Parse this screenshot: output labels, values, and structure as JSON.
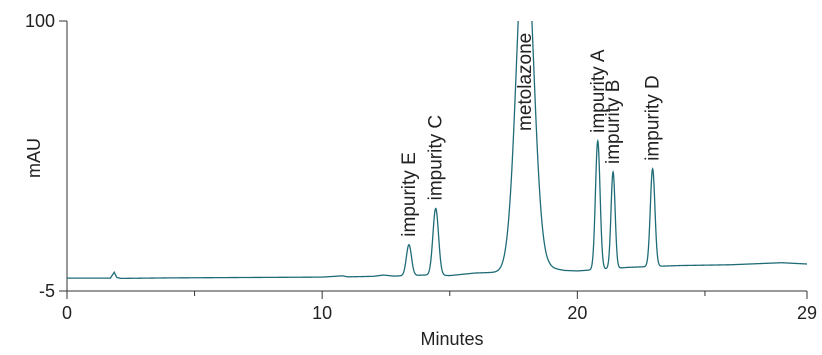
{
  "chart_data": {
    "type": "line",
    "title": "",
    "xlabel": "Minutes",
    "ylabel": "mAU",
    "xlim": [
      0,
      29
    ],
    "ylim": [
      -5,
      100
    ],
    "x_tick_labels": [
      "0",
      "10",
      "20",
      "29"
    ],
    "x_ticks": [
      0,
      10,
      20,
      29
    ],
    "x_minor_ticks": [
      5,
      15,
      25
    ],
    "y_tick_labels": [
      "100",
      "-5"
    ],
    "y_ticks": [
      100,
      -5
    ],
    "grid": false,
    "line_color": "#1f6b78",
    "baseline": {
      "points": [
        [
          0,
          0.0
        ],
        [
          1.7,
          0.0
        ],
        [
          1.85,
          2.3
        ],
        [
          1.95,
          0.3
        ],
        [
          2.1,
          -0.1
        ],
        [
          4,
          0.1
        ],
        [
          8,
          0.3
        ],
        [
          10,
          0.4
        ],
        [
          10.8,
          0.9
        ],
        [
          11,
          0.5
        ],
        [
          12,
          0.7
        ],
        [
          12.4,
          1.2
        ],
        [
          12.8,
          0.8
        ],
        [
          14,
          1.2
        ],
        [
          15,
          1.0
        ],
        [
          16,
          2.0
        ],
        [
          17,
          2.3
        ],
        [
          18.9,
          4.0
        ],
        [
          19.5,
          3.0
        ],
        [
          20,
          2.8
        ],
        [
          22,
          4.2
        ],
        [
          24,
          4.9
        ],
        [
          26,
          5.2
        ],
        [
          27,
          5.6
        ],
        [
          28,
          6.0
        ],
        [
          29,
          5.5
        ]
      ]
    },
    "peaks": [
      {
        "label": "impurity E",
        "x": 13.4,
        "height": 12.0,
        "width": 0.1
      },
      {
        "label": "impurity C",
        "x": 14.45,
        "height": 26.0,
        "width": 0.11
      },
      {
        "label": "metolazone",
        "x": 17.95,
        "height": 135.0,
        "width": 0.33
      },
      {
        "label": "impurity A",
        "x": 20.8,
        "height": 50.0,
        "width": 0.09
      },
      {
        "label": "impurity B",
        "x": 21.4,
        "height": 37.5,
        "width": 0.08
      },
      {
        "label": "impurity D",
        "x": 22.95,
        "height": 38.0,
        "width": 0.09
      }
    ]
  }
}
